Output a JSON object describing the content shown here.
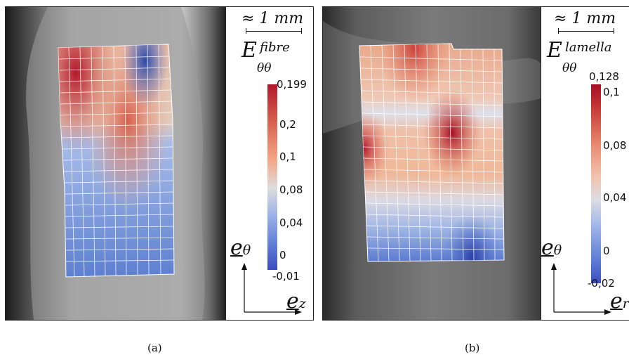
{
  "panels": [
    {
      "id": "a",
      "caption": "(a)",
      "scale_bar": "≈ 1 mm",
      "field": {
        "symbol": "E",
        "superscript": "fibre",
        "subscript": "θθ"
      },
      "colorbar": {
        "min_label": "-0,01",
        "max_label": "0,199",
        "tick_labels": [
          "0,199",
          "0,2",
          "0,1",
          "0,08",
          "0,04",
          "0",
          "-0,01"
        ]
      },
      "axes": {
        "vertical": "e",
        "vertical_sub": "θ",
        "horizontal": "e",
        "horizontal_sub": "z"
      }
    },
    {
      "id": "b",
      "caption": "(b)",
      "scale_bar": "≈ 1 mm",
      "field": {
        "symbol": "E",
        "superscript": "lamella",
        "subscript": "θθ"
      },
      "colorbar": {
        "min_label": "-0,02",
        "max_label": "0,128",
        "tick_labels": [
          "0,128",
          "0,1",
          "0,08",
          "0,04",
          "0",
          "-0,02"
        ]
      },
      "axes": {
        "vertical": "e",
        "vertical_sub": "θ",
        "horizontal": "e",
        "horizontal_sub": "r"
      }
    }
  ],
  "colors": {
    "high": "#b2182b",
    "mid": "#e8ddd5",
    "low": "#3b4cc0"
  }
}
